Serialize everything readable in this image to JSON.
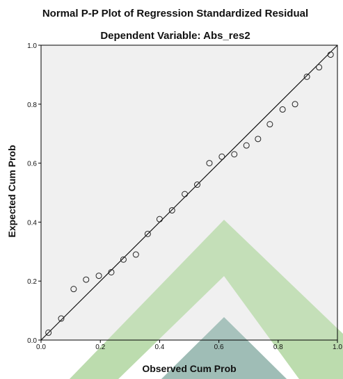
{
  "chart_data": {
    "type": "scatter",
    "title": "Normal P-P Plot of Regression Standardized Residual",
    "subtitle": "Dependent Variable: Abs_res2",
    "xlabel": "Observed Cum Prob",
    "ylabel": "Expected Cum Prob",
    "xlim": [
      0,
      1
    ],
    "ylim": [
      0,
      1
    ],
    "xticks": [
      "0.0",
      "0.2",
      "0.4",
      "0.6",
      "0.8",
      "1.0"
    ],
    "yticks": [
      "0.0",
      "0.2",
      "0.4",
      "0.6",
      "0.8",
      "1.0"
    ],
    "reference_line": {
      "from": [
        0,
        0
      ],
      "to": [
        1,
        1
      ]
    },
    "grid": false,
    "points": [
      {
        "x": 0.025,
        "y": 0.025
      },
      {
        "x": 0.068,
        "y": 0.073
      },
      {
        "x": 0.11,
        "y": 0.173
      },
      {
        "x": 0.152,
        "y": 0.205
      },
      {
        "x": 0.195,
        "y": 0.218
      },
      {
        "x": 0.237,
        "y": 0.23
      },
      {
        "x": 0.278,
        "y": 0.273
      },
      {
        "x": 0.32,
        "y": 0.29
      },
      {
        "x": 0.36,
        "y": 0.36
      },
      {
        "x": 0.4,
        "y": 0.41
      },
      {
        "x": 0.442,
        "y": 0.44
      },
      {
        "x": 0.485,
        "y": 0.495
      },
      {
        "x": 0.527,
        "y": 0.527
      },
      {
        "x": 0.568,
        "y": 0.6
      },
      {
        "x": 0.61,
        "y": 0.622
      },
      {
        "x": 0.652,
        "y": 0.63
      },
      {
        "x": 0.693,
        "y": 0.66
      },
      {
        "x": 0.732,
        "y": 0.682
      },
      {
        "x": 0.772,
        "y": 0.732
      },
      {
        "x": 0.815,
        "y": 0.782
      },
      {
        "x": 0.857,
        "y": 0.8
      },
      {
        "x": 0.897,
        "y": 0.893
      },
      {
        "x": 0.938,
        "y": 0.925
      },
      {
        "x": 0.977,
        "y": 0.968
      }
    ]
  },
  "colors": {
    "plot_background": "#f0f0f0",
    "axis": "#000000",
    "marker": "#222222",
    "reference_line": "#111111",
    "watermark_green": "#bcdcae",
    "watermark_teal": "#9fbcb6"
  }
}
